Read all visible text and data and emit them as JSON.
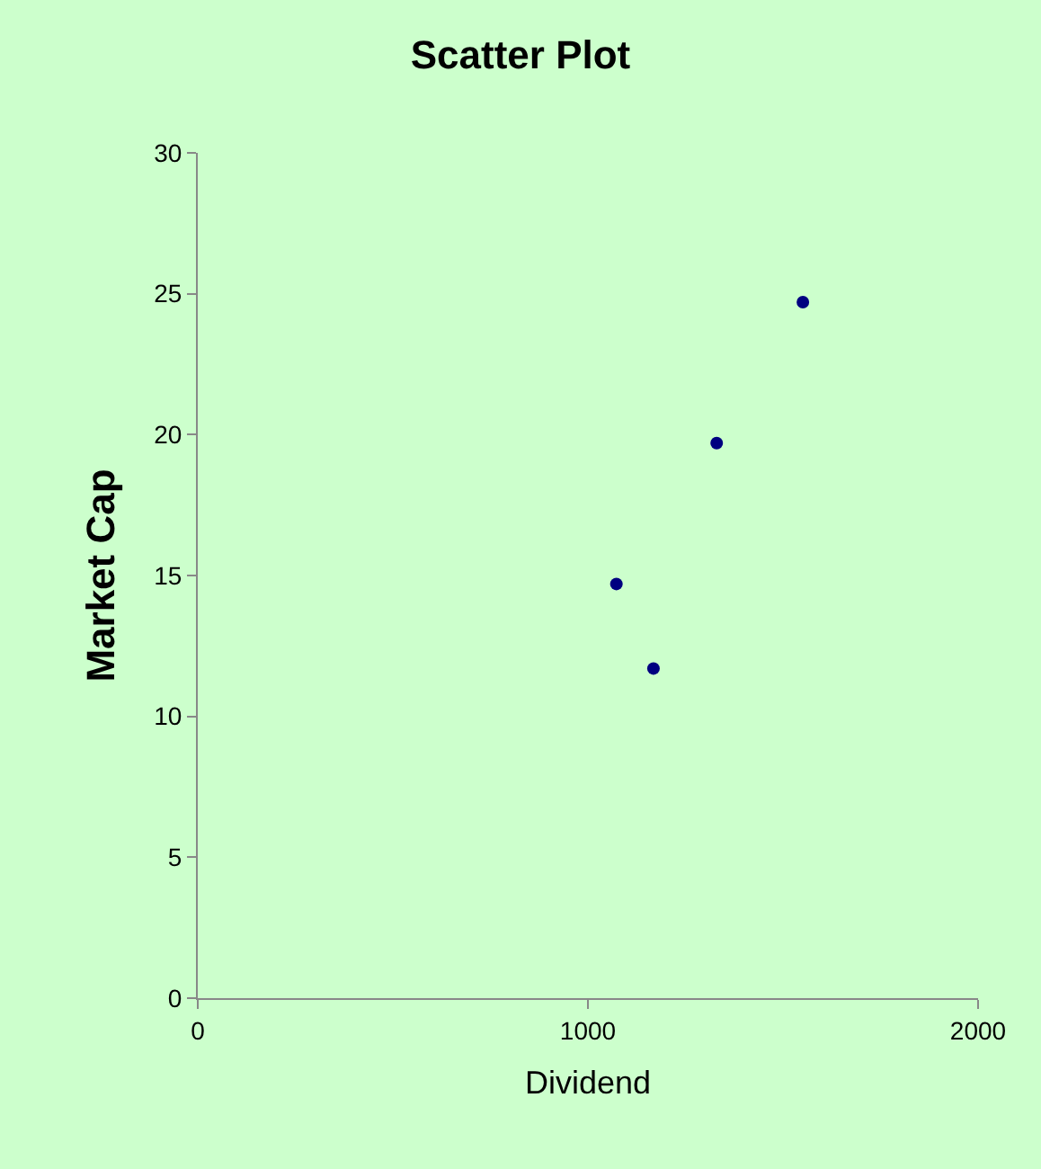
{
  "chart_data": {
    "type": "scatter",
    "title": "Scatter Plot",
    "xlabel": "Dividend",
    "ylabel": "Market Cap",
    "x": [
      1073,
      1168,
      1330,
      1551
    ],
    "series": [
      {
        "color": "#000080",
        "values": [
          14.7,
          11.7,
          19.7,
          24.7
        ]
      }
    ],
    "xlim": [
      0,
      2000
    ],
    "xticks": [
      0,
      1000,
      2000
    ],
    "ylim": [
      0,
      30
    ],
    "yticks": [
      0,
      5,
      10,
      15,
      20,
      25,
      30
    ],
    "grid": false,
    "marker": "circle"
  }
}
